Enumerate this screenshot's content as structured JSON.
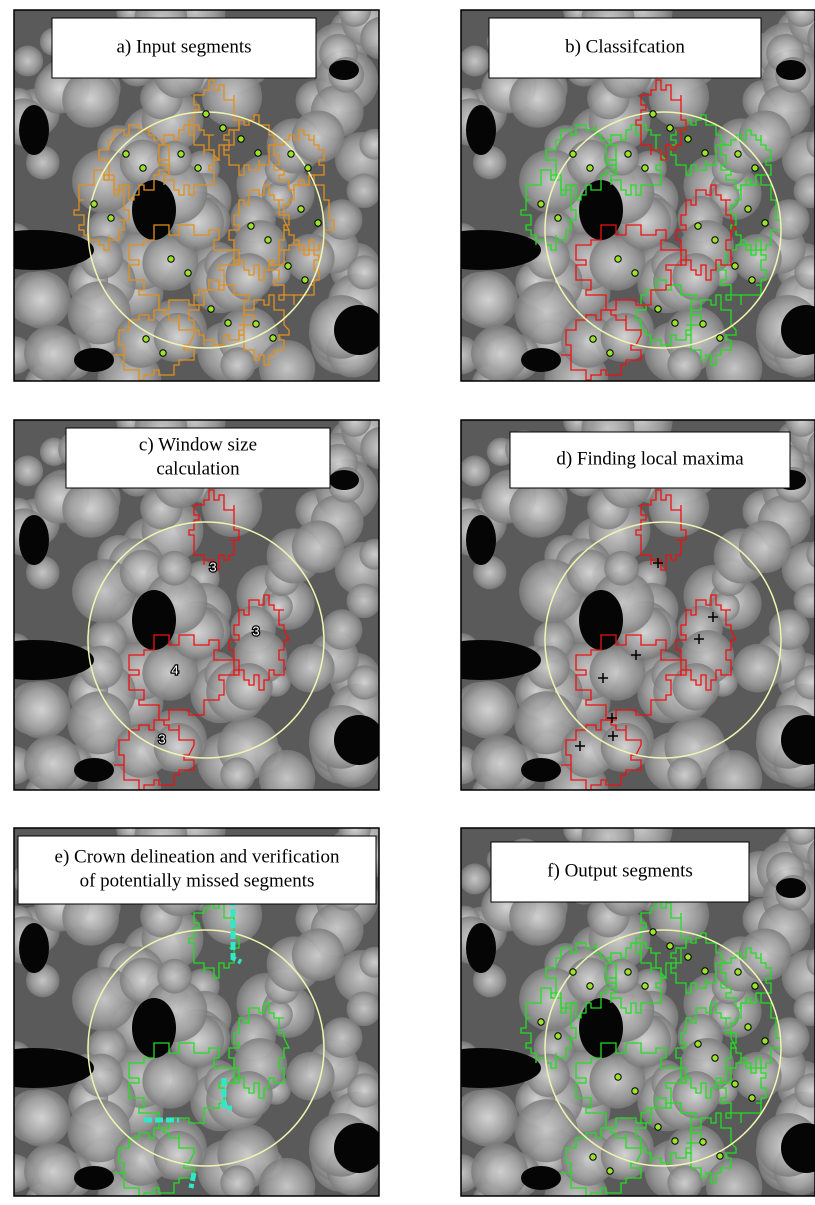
{
  "panels": [
    {
      "title_lines": [
        "a) Input segments"
      ]
    },
    {
      "title_lines": [
        "b) Classifcation"
      ]
    },
    {
      "title_lines": [
        "c) Window size",
        "calculation"
      ],
      "window_sizes": [
        3,
        3,
        4,
        3
      ]
    },
    {
      "title_lines": [
        "d) Finding local maxima"
      ]
    },
    {
      "title_lines": [
        "e) Crown delineation and verification",
        "of potentially missed segments"
      ]
    },
    {
      "title_lines": [
        "f) Output segments"
      ]
    }
  ]
}
